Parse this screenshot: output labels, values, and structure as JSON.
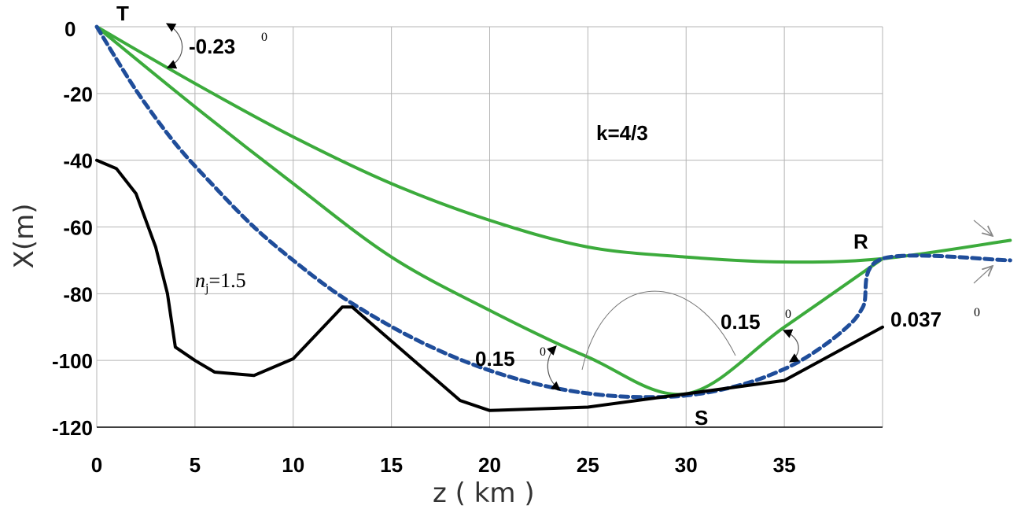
{
  "chart_data": {
    "type": "line",
    "xlabel": "z ( km )",
    "ylabel": "X(m)",
    "xlim": [
      0,
      40
    ],
    "ylim": [
      -120,
      0
    ],
    "x_ticks": [
      "0",
      "5",
      "10",
      "15",
      "20",
      "25",
      "30",
      "35"
    ],
    "y_ticks": [
      "0",
      "-20",
      "-40",
      "-60",
      "-80",
      "-100",
      "-120"
    ],
    "grid": true,
    "colors": {
      "ray": "#3cab3c",
      "earth_k43": "#1f4d9a",
      "terrain": "#000000",
      "arrow": "#888888"
    },
    "series": [
      {
        "style": "green-solid",
        "x": [
          0,
          5,
          10,
          15,
          20,
          25,
          30,
          35,
          40,
          46.5
        ],
        "y": [
          0,
          -17,
          -33,
          -47,
          -58,
          -66,
          -69,
          -70.5,
          -69.5,
          -64
        ]
      },
      {
        "style": "green-solid",
        "x": [
          0,
          5,
          10,
          15,
          20,
          25,
          30,
          35,
          40
        ],
        "y": [
          0,
          -24,
          -47,
          -69,
          -85,
          -99,
          -110,
          -90,
          -69.5
        ]
      },
      {
        "style": "blue-dashed",
        "x": [
          0,
          2,
          4,
          6,
          8,
          10,
          12,
          14,
          16,
          18,
          20,
          22,
          24,
          26,
          28,
          30,
          32,
          34,
          36,
          38,
          39,
          40,
          46.5
        ],
        "y": [
          0,
          -19,
          -35,
          -48,
          -60,
          -70,
          -79,
          -86.5,
          -93,
          -98.5,
          -103,
          -106.5,
          -109,
          -110.5,
          -111,
          -110.5,
          -108.5,
          -105,
          -99.5,
          -91,
          -84,
          -69.5,
          -70
        ]
      },
      {
        "style": "black-solid",
        "x": [
          0,
          1,
          2,
          3,
          3.6,
          4,
          5,
          6,
          7,
          8,
          10,
          12.5,
          13,
          18.5,
          20,
          25,
          30,
          35,
          40
        ],
        "y": [
          -40,
          -42.5,
          -50,
          -66,
          -80,
          -96,
          -100,
          -103.5,
          -104,
          -104.5,
          -99.5,
          -84,
          -84,
          -112,
          -115,
          -114,
          -110,
          -106,
          -90
        ]
      }
    ],
    "annotations": {
      "origin": "0",
      "t_point": "T",
      "r_point": "R",
      "s_point": "S",
      "angle_t": "-0.23",
      "angle_s_left": "0.15",
      "angle_s_right": "0.15",
      "angle_r": "0.037",
      "degree_mark": "0",
      "k_value": "k=4/3",
      "n_main": "n",
      "n_sub": "j",
      "n_rest": "=1.5"
    }
  }
}
